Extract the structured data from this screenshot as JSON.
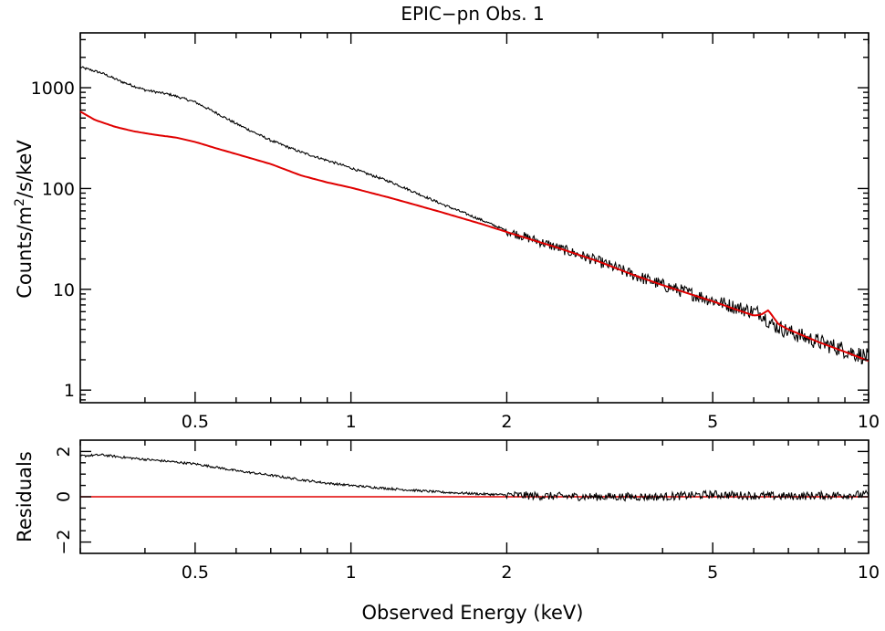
{
  "chart_data": [
    {
      "type": "line",
      "title": "EPIC−pn Obs. 1",
      "ylabel_prefix": "Counts/m",
      "ylabel_sup": "2",
      "ylabel_suffix": "/s/keV",
      "xscale": "log",
      "yscale": "log",
      "xlim": [
        0.3,
        10
      ],
      "ylim": [
        0.75,
        3500
      ],
      "xticks": [
        {
          "value": 0.5,
          "label": "0.5"
        },
        {
          "value": 1,
          "label": "1"
        },
        {
          "value": 2,
          "label": "2"
        },
        {
          "value": 5,
          "label": "5"
        },
        {
          "value": 10,
          "label": "10"
        }
      ],
      "yticks": [
        {
          "value": 1,
          "label": "1"
        },
        {
          "value": 10,
          "label": "10"
        },
        {
          "value": 100,
          "label": "100"
        },
        {
          "value": 1000,
          "label": "1000"
        }
      ],
      "series": [
        {
          "color": "#000000",
          "x": [
            0.3,
            0.33,
            0.36,
            0.4,
            0.45,
            0.5,
            0.55,
            0.6,
            0.7,
            0.8,
            0.9,
            1.0,
            1.2,
            1.5,
            1.8,
            2.0,
            2.5,
            3.0,
            3.5,
            4.0,
            5.0,
            5.5,
            6.0,
            6.2,
            6.5,
            7.0,
            8.0,
            9.0,
            10.0
          ],
          "y": [
            1600,
            1400,
            1150,
            950,
            850,
            720,
            560,
            440,
            300,
            230,
            190,
            160,
            115,
            70,
            48,
            38,
            26,
            19,
            14,
            11,
            7.8,
            6.7,
            6.0,
            5.8,
            4.5,
            3.8,
            3.0,
            2.5,
            2.1
          ]
        },
        {
          "color": "#e00000",
          "x": [
            0.3,
            0.32,
            0.35,
            0.38,
            0.42,
            0.46,
            0.5,
            0.55,
            0.6,
            0.7,
            0.8,
            0.9,
            1.0,
            1.2,
            1.5,
            1.8,
            2.0,
            2.5,
            3.0,
            3.5,
            4.0,
            5.0,
            5.5,
            6.0,
            6.2,
            6.4,
            6.7,
            7.0,
            8.0,
            9.0,
            10.0
          ],
          "y": [
            580,
            480,
            410,
            370,
            340,
            320,
            290,
            250,
            220,
            175,
            135,
            115,
            102,
            80,
            58,
            44,
            37,
            26,
            19,
            14,
            11,
            7.6,
            6.4,
            5.5,
            5.6,
            6.2,
            4.5,
            4.0,
            3.0,
            2.4,
            1.95
          ]
        }
      ]
    },
    {
      "type": "line",
      "ylabel": "Residuals",
      "xlabel": "Observed Energy (keV)",
      "xscale": "log",
      "xlim": [
        0.3,
        10
      ],
      "ylim": [
        -2.5,
        2.5
      ],
      "xticks": [
        {
          "value": 0.5,
          "label": "0.5"
        },
        {
          "value": 1,
          "label": "1"
        },
        {
          "value": 2,
          "label": "2"
        },
        {
          "value": 5,
          "label": "5"
        },
        {
          "value": 10,
          "label": "10"
        }
      ],
      "yticks": [
        {
          "value": -2,
          "label": "−2"
        },
        {
          "value": 0,
          "label": "0"
        },
        {
          "value": 2,
          "label": "2"
        }
      ],
      "series": [
        {
          "color": "#000000",
          "x": [
            0.3,
            0.33,
            0.36,
            0.4,
            0.45,
            0.5,
            0.55,
            0.6,
            0.7,
            0.8,
            0.9,
            1.0,
            1.2,
            1.5,
            1.8,
            2.0,
            2.2,
            2.5,
            3.0,
            4.0,
            5.0,
            6.0,
            7.0,
            8.0,
            10.0
          ],
          "y": [
            1.8,
            1.85,
            1.75,
            1.65,
            1.55,
            1.45,
            1.3,
            1.15,
            0.95,
            0.75,
            0.6,
            0.5,
            0.35,
            0.2,
            0.12,
            0.08,
            0.05,
            0.02,
            0.0,
            0.0,
            0.1,
            0.05,
            0.02,
            0.05,
            0.1
          ]
        },
        {
          "color": "#e00000",
          "x": [
            0.3,
            10.0
          ],
          "y": [
            0,
            0
          ]
        }
      ]
    }
  ]
}
